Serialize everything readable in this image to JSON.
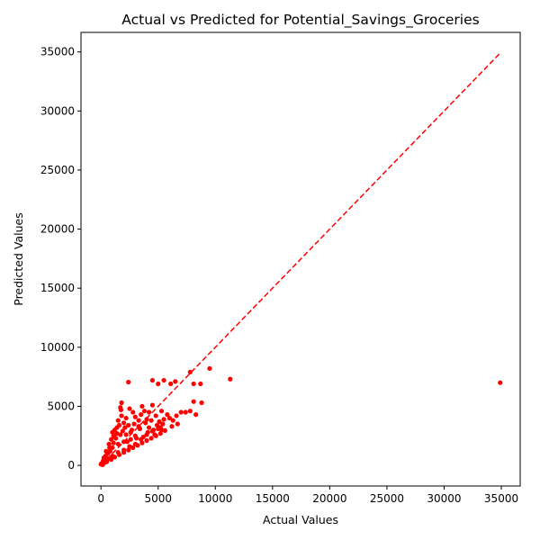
{
  "chart_data": {
    "type": "scatter",
    "title": "Actual vs Predicted for Potential_Savings_Groceries",
    "xlabel": "Actual Values",
    "ylabel": "Predicted Values",
    "xlim": [
      -1745,
      36650
    ],
    "ylim": [
      -1745,
      36650
    ],
    "xticks": [
      0,
      5000,
      10000,
      15000,
      20000,
      25000,
      30000,
      35000
    ],
    "yticks": [
      0,
      5000,
      10000,
      15000,
      20000,
      25000,
      30000,
      35000
    ],
    "xtick_labels": [
      "0",
      "5000",
      "10000",
      "15000",
      "20000",
      "25000",
      "30000",
      "35000"
    ],
    "ytick_labels": [
      "0",
      "5000",
      "10000",
      "15000",
      "20000",
      "25000",
      "30000",
      "35000"
    ],
    "grid": false,
    "colors": {
      "points": "#ff0000",
      "reference_line": "#ff0000"
    },
    "reference_line": {
      "style": "dashed",
      "x": [
        0,
        34900
      ],
      "y": [
        0,
        34900
      ]
    },
    "points": [
      [
        11300,
        7300
      ],
      [
        34900,
        7000
      ],
      [
        9500,
        8200
      ],
      [
        7800,
        7900
      ],
      [
        4500,
        7200
      ],
      [
        5500,
        7200
      ],
      [
        6500,
        7100
      ],
      [
        8100,
        6900
      ],
      [
        8700,
        6900
      ],
      [
        2400,
        7050
      ],
      [
        5000,
        6900
      ],
      [
        6100,
        6900
      ],
      [
        7800,
        4600
      ],
      [
        8100,
        5400
      ],
      [
        8300,
        4300
      ],
      [
        7000,
        4500
      ],
      [
        7400,
        4500
      ],
      [
        6700,
        3500
      ],
      [
        8800,
        5300
      ],
      [
        6000,
        4000
      ],
      [
        5800,
        4300
      ],
      [
        6300,
        3800
      ],
      [
        5500,
        3900
      ],
      [
        5200,
        3200
      ],
      [
        5300,
        4600
      ],
      [
        5600,
        2950
      ],
      [
        4800,
        4200
      ],
      [
        4500,
        5100
      ],
      [
        4200,
        4500
      ],
      [
        4000,
        3900
      ],
      [
        3800,
        4600
      ],
      [
        3500,
        4300
      ],
      [
        3300,
        3800
      ],
      [
        3000,
        4100
      ],
      [
        2800,
        4500
      ],
      [
        2500,
        4800
      ],
      [
        2200,
        4000
      ],
      [
        2000,
        3600
      ],
      [
        1800,
        5300
      ],
      [
        1700,
        4900
      ],
      [
        1750,
        4700
      ],
      [
        1800,
        4200
      ],
      [
        1600,
        3400
      ],
      [
        1400,
        3200
      ],
      [
        1200,
        3000
      ],
      [
        1000,
        2800
      ],
      [
        1500,
        3800
      ],
      [
        3600,
        5000
      ],
      [
        4200,
        3200
      ],
      [
        4600,
        3000
      ],
      [
        3000,
        2500
      ],
      [
        2600,
        2200
      ],
      [
        2000,
        2000
      ],
      [
        1500,
        1800
      ],
      [
        1000,
        1500
      ],
      [
        800,
        1200
      ],
      [
        600,
        1000
      ],
      [
        400,
        800
      ],
      [
        300,
        500
      ],
      [
        200,
        400
      ],
      [
        100,
        200
      ],
      [
        50,
        150
      ],
      [
        0,
        100
      ],
      [
        500,
        300
      ],
      [
        900,
        500
      ],
      [
        1200,
        700
      ],
      [
        1600,
        900
      ],
      [
        2000,
        1100
      ],
      [
        2400,
        1300
      ],
      [
        2800,
        1500
      ],
      [
        3200,
        1700
      ],
      [
        3600,
        1900
      ],
      [
        4000,
        2100
      ],
      [
        4400,
        2300
      ],
      [
        4800,
        2500
      ],
      [
        5200,
        2700
      ],
      [
        3000,
        1800
      ],
      [
        2500,
        1600
      ],
      [
        2000,
        1300
      ],
      [
        1500,
        1100
      ],
      [
        1000,
        800
      ],
      [
        3500,
        2200
      ],
      [
        4000,
        2600
      ],
      [
        4500,
        2900
      ],
      [
        5000,
        3100
      ],
      [
        2200,
        2600
      ],
      [
        2700,
        3000
      ],
      [
        3300,
        3300
      ],
      [
        3900,
        3600
      ],
      [
        4400,
        3800
      ],
      [
        1300,
        2300
      ],
      [
        1700,
        2600
      ],
      [
        700,
        1800
      ],
      [
        900,
        2200
      ],
      [
        1100,
        2500
      ],
      [
        1400,
        2700
      ],
      [
        2100,
        3200
      ],
      [
        2400,
        3400
      ],
      [
        2900,
        3500
      ],
      [
        3400,
        3100
      ],
      [
        4900,
        3400
      ],
      [
        5100,
        3700
      ],
      [
        5400,
        3500
      ],
      [
        6200,
        3300
      ],
      [
        6600,
        4200
      ],
      [
        350,
        250
      ],
      [
        650,
        550
      ],
      [
        150,
        50
      ],
      [
        250,
        650
      ],
      [
        450,
        1200
      ],
      [
        750,
        1500
      ],
      [
        1900,
        2900
      ],
      [
        2300,
        2000
      ],
      [
        2600,
        2800
      ],
      [
        3100,
        2300
      ],
      [
        3700,
        2400
      ],
      [
        4100,
        2800
      ],
      [
        4700,
        2600
      ],
      [
        5300,
        3000
      ],
      [
        1100,
        1900
      ]
    ]
  }
}
